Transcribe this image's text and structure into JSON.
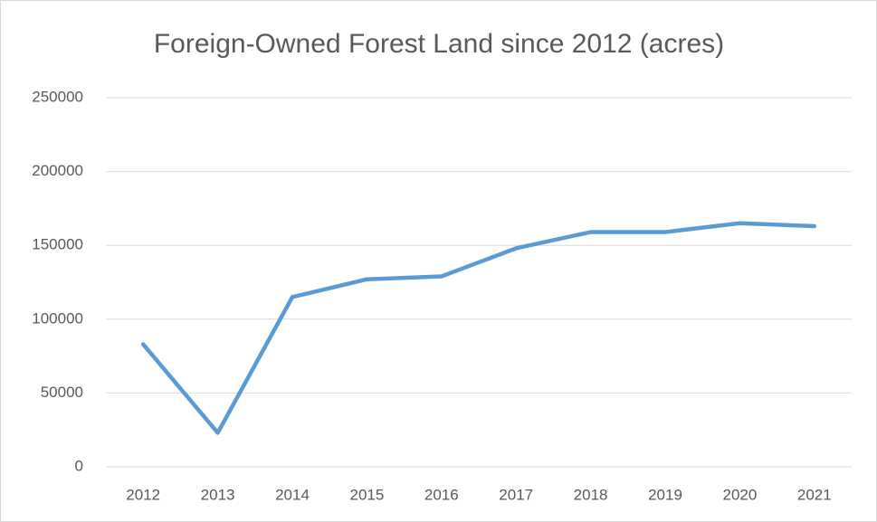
{
  "chart_data": {
    "type": "line",
    "title": "Foreign-Owned Forest Land since 2012 (acres)",
    "categories": [
      "2012",
      "2013",
      "2014",
      "2015",
      "2016",
      "2017",
      "2018",
      "2019",
      "2020",
      "2021"
    ],
    "series": [
      {
        "name": "Foreign-Owned Forest Land",
        "color": "#5b9bd5",
        "values": [
          83000,
          23000,
          115000,
          127000,
          129000,
          148000,
          159000,
          159000,
          165000,
          163000
        ]
      }
    ],
    "ylim": [
      0,
      250000
    ],
    "yticks": [
      0,
      50000,
      100000,
      150000,
      200000,
      250000
    ],
    "grid": true,
    "legend": false
  }
}
